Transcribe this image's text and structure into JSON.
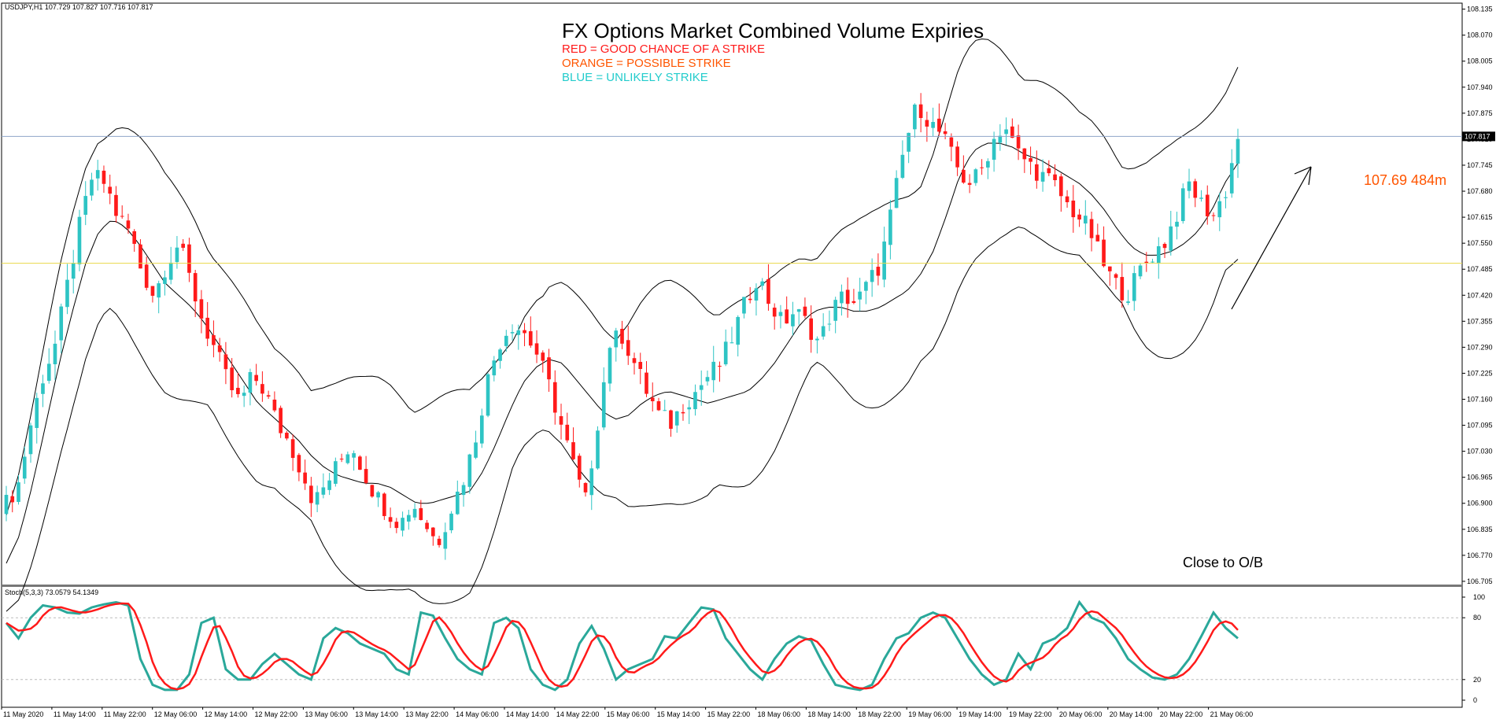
{
  "symbol_header": "USDJPY,H1  107.729 107.827 107.716 107.817",
  "title": "FX Options Market Combined Volume Expiries",
  "legend": [
    {
      "text": "RED = GOOD CHANCE OF A STRIKE",
      "color": "#ff1a1a"
    },
    {
      "text": "ORANGE = POSSIBLE STRIKE",
      "color": "#ff5500"
    },
    {
      "text": "BLUE = UNLIKELY STRIKE",
      "color": "#22cccc"
    }
  ],
  "annotations": {
    "expiry_label": "107.69 484m",
    "expiry_color": "#ff5500",
    "close_note": "Close to O/B"
  },
  "colors": {
    "bull": "#2ec4c4",
    "bear": "#ff1a1a",
    "bands": "#000000",
    "current_price_line": "#8fa4c8",
    "strike_line": "#e8d84a",
    "stoch_main": "#2aa89a",
    "stoch_signal": "#ff1a1a"
  },
  "stoch_label": "Stoch(5,3,3) 73.0579 54.1349",
  "chart_data": [
    {
      "type": "candlestick",
      "symbol": "USDJPY",
      "timeframe": "H1",
      "price_axis_ticks": [
        "108.135",
        "108.070",
        "108.005",
        "107.940",
        "107.875",
        "107.810",
        "107.745",
        "107.680",
        "107.615",
        "107.550",
        "107.485",
        "107.420",
        "107.355",
        "107.290",
        "107.225",
        "107.160",
        "107.095",
        "107.030",
        "106.965",
        "106.900",
        "106.835",
        "106.770",
        "106.705"
      ],
      "current_price": "107.817",
      "current_price_value": 107.817,
      "ylim": [
        106.695,
        108.15
      ],
      "strike_level": 107.5,
      "time_axis_labels": [
        "11 May 2020",
        "11 May 14:00",
        "11 May 22:00",
        "12 May 06:00",
        "12 May 14:00",
        "12 May 22:00",
        "13 May 06:00",
        "13 May 14:00",
        "13 May 22:00",
        "14 May 06:00",
        "14 May 14:00",
        "14 May 22:00",
        "15 May 06:00",
        "15 May 14:00",
        "15 May 22:00",
        "18 May 06:00",
        "18 May 14:00",
        "18 May 22:00",
        "19 May 06:00",
        "19 May 14:00",
        "19 May 22:00",
        "20 May 06:00",
        "20 May 14:00",
        "20 May 22:00",
        "21 May 06:00"
      ],
      "close_path": [
        106.9,
        106.95,
        107.1,
        107.22,
        107.3,
        107.45,
        107.6,
        107.72,
        107.7,
        107.62,
        107.58,
        107.48,
        107.42,
        107.5,
        107.55,
        107.45,
        107.35,
        107.28,
        107.2,
        107.15,
        107.22,
        107.18,
        107.1,
        107.05,
        106.98,
        106.9,
        106.95,
        107.0,
        107.05,
        106.98,
        106.92,
        106.88,
        106.85,
        106.9,
        106.85,
        106.8,
        106.88,
        106.95,
        107.05,
        107.2,
        107.3,
        107.35,
        107.33,
        107.28,
        107.2,
        107.1,
        107.0,
        106.9,
        107.1,
        107.3,
        107.32,
        107.25,
        107.18,
        107.12,
        107.1,
        107.15,
        107.18,
        107.22,
        107.25,
        107.32,
        107.4,
        107.47,
        107.4,
        107.35,
        107.38,
        107.35,
        107.3,
        107.38,
        107.42,
        107.4,
        107.45,
        107.5,
        107.65,
        107.8,
        107.9,
        107.85,
        107.82,
        107.75,
        107.7,
        107.72,
        107.8,
        107.85,
        107.78,
        107.75,
        107.72,
        107.7,
        107.65,
        107.62,
        107.58,
        107.5,
        107.45,
        107.42,
        107.48,
        107.52,
        107.55,
        107.62,
        107.7,
        107.65,
        107.62,
        107.68,
        107.817
      ],
      "bollinger_middle": [
        106.75,
        106.82,
        106.95,
        107.1,
        107.25,
        107.38,
        107.5,
        107.58,
        107.61,
        107.59,
        107.55,
        107.5,
        107.45,
        107.42,
        107.39,
        107.35,
        107.3,
        107.25,
        107.2,
        107.15,
        107.12,
        107.09,
        107.06,
        107.02,
        106.99,
        106.97,
        106.96,
        106.95,
        106.95,
        106.94,
        106.92,
        106.9,
        106.9,
        106.91,
        106.92,
        106.93,
        106.98,
        107.05,
        107.13,
        107.2,
        107.24,
        107.26,
        107.25,
        107.21,
        107.17,
        107.13,
        107.11,
        107.12,
        107.15,
        107.17,
        107.18,
        107.17,
        107.16,
        107.15,
        107.16,
        107.17,
        107.18,
        107.21,
        107.25,
        107.3,
        107.35,
        107.38,
        107.39,
        107.39,
        107.38,
        107.38,
        107.39,
        107.41,
        107.43,
        107.47,
        107.53,
        107.62,
        107.72,
        107.78,
        107.8,
        107.8,
        107.79,
        107.77,
        107.76,
        107.74,
        107.72,
        107.7,
        107.67,
        107.63,
        107.58,
        107.54,
        107.52,
        107.52,
        107.53,
        107.55,
        107.58,
        107.63,
        107.7,
        107.75
      ]
    },
    {
      "type": "line",
      "name": "Stoch(5,3,3)",
      "ylim": [
        0,
        100
      ],
      "levels": [
        20,
        80
      ],
      "axis_ticks": [
        "100",
        "80",
        "20",
        "0"
      ],
      "main_value": 73.0579,
      "signal_value": 54.1349,
      "main_samples": [
        75,
        60,
        80,
        92,
        90,
        85,
        84,
        90,
        93,
        95,
        92,
        40,
        15,
        10,
        10,
        25,
        75,
        80,
        30,
        20,
        20,
        35,
        45,
        35,
        25,
        20,
        60,
        70,
        65,
        55,
        50,
        45,
        30,
        25,
        85,
        82,
        60,
        40,
        30,
        25,
        75,
        80,
        70,
        30,
        15,
        10,
        20,
        55,
        72,
        50,
        20,
        30,
        35,
        40,
        62,
        60,
        75,
        90,
        88,
        60,
        45,
        30,
        20,
        40,
        55,
        62,
        58,
        35,
        15,
        12,
        10,
        15,
        40,
        60,
        65,
        80,
        85,
        80,
        60,
        40,
        25,
        15,
        20,
        45,
        30,
        55,
        60,
        70,
        95,
        80,
        75,
        60,
        40,
        30,
        22,
        20,
        25,
        40,
        62,
        85,
        70,
        60
      ]
    }
  ]
}
